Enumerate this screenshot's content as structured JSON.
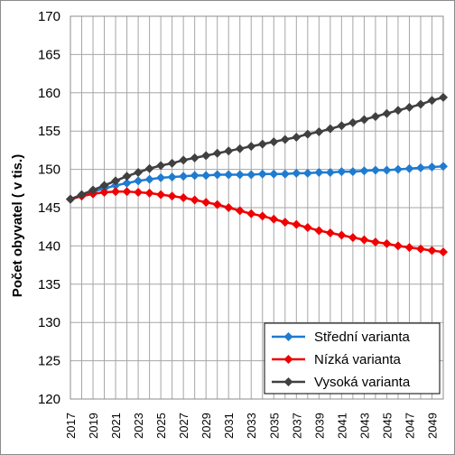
{
  "chart_data": {
    "type": "line",
    "title": "",
    "xlabel": "",
    "ylabel": "Počet obyvatel ( v tis.)",
    "ylim": [
      120,
      170
    ],
    "yticks": [
      120,
      125,
      130,
      135,
      140,
      145,
      150,
      155,
      160,
      165,
      170
    ],
    "x": [
      2017,
      2018,
      2019,
      2020,
      2021,
      2022,
      2023,
      2024,
      2025,
      2026,
      2027,
      2028,
      2029,
      2030,
      2031,
      2032,
      2033,
      2034,
      2035,
      2036,
      2037,
      2038,
      2039,
      2040,
      2041,
      2042,
      2043,
      2044,
      2045,
      2046,
      2047,
      2048,
      2049,
      2050
    ],
    "xtick_labels": [
      "2017",
      "2019",
      "2021",
      "2023",
      "2025",
      "2027",
      "2029",
      "2031",
      "2033",
      "2035",
      "2037",
      "2039",
      "2041",
      "2043",
      "2045",
      "2047",
      "2049"
    ],
    "grid": "vertical and horizontal",
    "legend_position": "bottom-right",
    "series": [
      {
        "name": "Střední varianta",
        "color": "#1f7bd1",
        "marker": "diamond",
        "values": [
          146.1,
          146.6,
          147.1,
          147.5,
          147.9,
          148.2,
          148.5,
          148.7,
          148.9,
          149.0,
          149.1,
          149.2,
          149.2,
          149.3,
          149.3,
          149.3,
          149.3,
          149.4,
          149.4,
          149.4,
          149.5,
          149.5,
          149.6,
          149.6,
          149.7,
          149.7,
          149.8,
          149.9,
          149.9,
          150.0,
          150.1,
          150.2,
          150.3,
          150.4
        ]
      },
      {
        "name": "Nízká varianta",
        "color": "#f00000",
        "marker": "diamond",
        "values": [
          146.1,
          146.5,
          146.8,
          147.0,
          147.1,
          147.1,
          147.0,
          146.9,
          146.7,
          146.5,
          146.3,
          146.0,
          145.7,
          145.4,
          145.0,
          144.6,
          144.2,
          143.9,
          143.5,
          143.1,
          142.8,
          142.4,
          142.0,
          141.7,
          141.4,
          141.1,
          140.8,
          140.5,
          140.3,
          140.0,
          139.8,
          139.6,
          139.4,
          139.2
        ]
      },
      {
        "name": "Vysoká varianta",
        "color": "#404040",
        "marker": "diamond",
        "values": [
          146.1,
          146.7,
          147.3,
          147.9,
          148.5,
          149.1,
          149.6,
          150.1,
          150.5,
          150.8,
          151.2,
          151.5,
          151.8,
          152.1,
          152.4,
          152.7,
          153.0,
          153.3,
          153.6,
          153.9,
          154.2,
          154.6,
          154.9,
          155.3,
          155.7,
          156.1,
          156.5,
          156.9,
          157.3,
          157.7,
          158.1,
          158.5,
          159.0,
          159.4
        ]
      }
    ]
  }
}
